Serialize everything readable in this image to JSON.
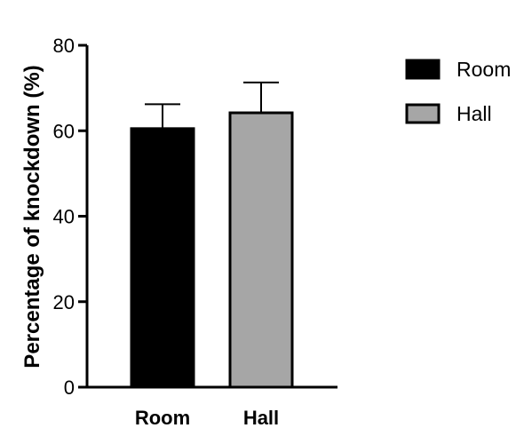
{
  "chart_data": {
    "type": "bar",
    "categories": [
      "Room",
      "Hall"
    ],
    "values": [
      60.5,
      64.2
    ],
    "errors": [
      5.7,
      7.1
    ],
    "colors": [
      "#000000",
      "#a6a6a6"
    ],
    "title": "",
    "xlabel": "",
    "ylabel": "Percentage of  knockdown (%)",
    "ylim": [
      0,
      80
    ],
    "yticks": [
      "0",
      "20",
      "40",
      "60",
      "80"
    ],
    "legend": {
      "placement": "top-right",
      "entries": [
        {
          "label": "Room",
          "color": "#000000"
        },
        {
          "label": "Hall",
          "color": "#a6a6a6"
        }
      ]
    }
  }
}
